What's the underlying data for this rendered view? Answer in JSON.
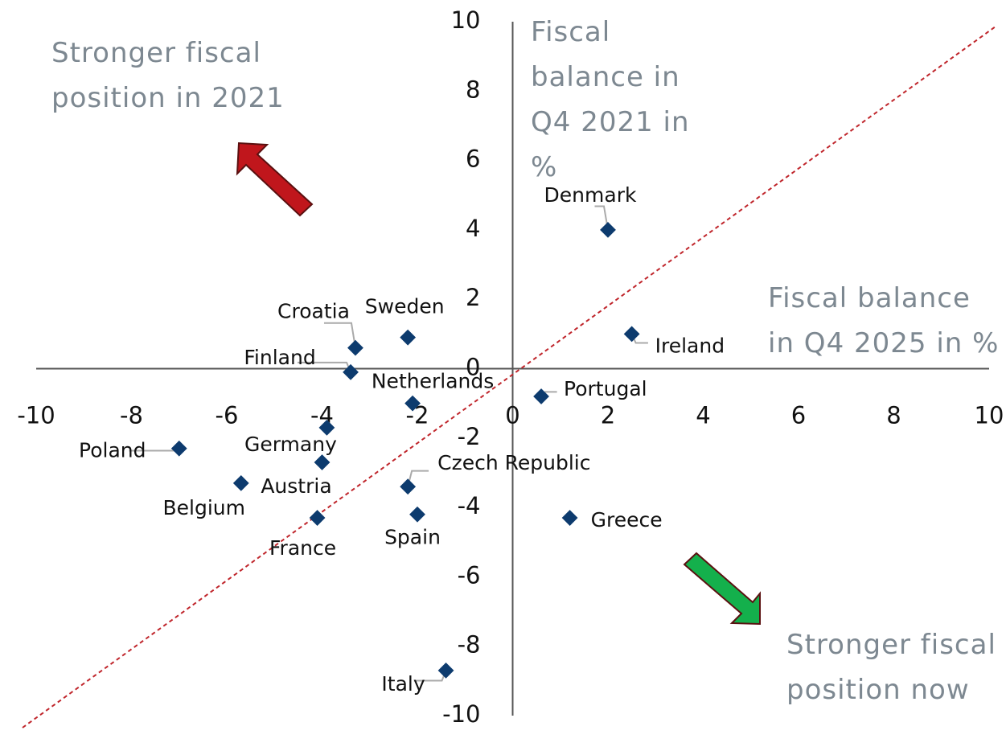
{
  "chart_data": {
    "type": "scatter",
    "x_label": "Fiscal balance in Q4 2025 in %",
    "y_label": "Fiscal balance in Q4 2021 in %",
    "annotations": [
      "Stronger fiscal position in 2021",
      "Stronger fiscal position now"
    ],
    "labels": [
      "Denmark",
      "Ireland",
      "Portugal",
      "Greece",
      "Sweden",
      "Croatia",
      "Finland",
      "Netherlands",
      "Germany",
      "Austria",
      "Belgium",
      "Poland",
      "France",
      "Czech Republic",
      "Spain",
      "Italy"
    ],
    "x": [
      2.0,
      2.5,
      0.6,
      1.2,
      -2.2,
      -3.3,
      -3.4,
      -2.1,
      -3.9,
      -4.0,
      -5.7,
      -7.0,
      -4.1,
      -2.2,
      -2.0,
      -1.4
    ],
    "values": [
      4.0,
      1.0,
      -0.8,
      -4.3,
      0.9,
      0.6,
      -0.1,
      -1.0,
      -1.7,
      -2.7,
      -3.3,
      -2.3,
      -4.3,
      -3.4,
      -4.2,
      -8.7
    ],
    "color": "#0d3b6e",
    "xlim": [
      -10,
      10
    ],
    "xticks": [
      -10,
      -8,
      -6,
      -4,
      -2,
      0,
      2,
      4,
      6,
      8,
      10
    ],
    "ylim": [
      -10,
      10
    ],
    "yticks": [
      -10,
      -8,
      -6,
      -4,
      -2,
      0,
      2,
      4,
      6,
      8,
      10
    ]
  }
}
